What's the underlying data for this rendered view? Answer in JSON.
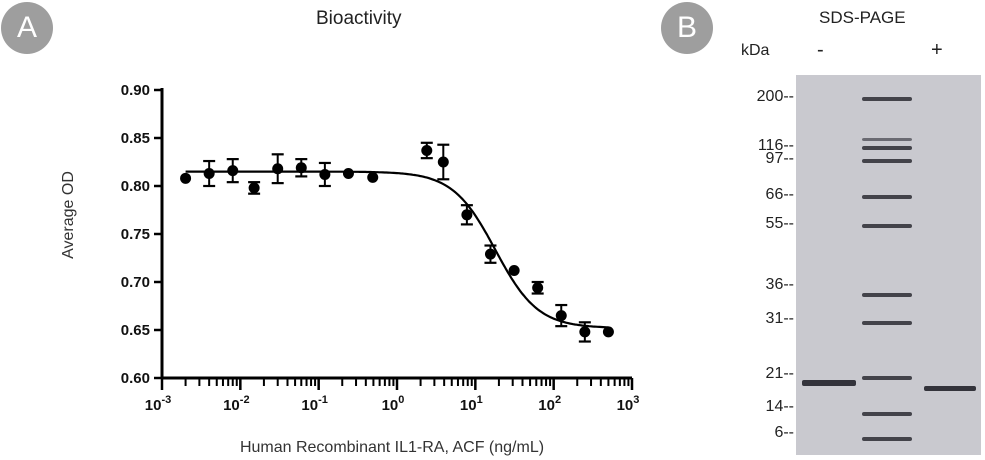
{
  "panel_a": {
    "badge": "A",
    "chart_data": {
      "type": "scatter",
      "title": "Bioactivity",
      "xlabel": "Human Recombinant IL1-RA, ACF (ng/mL)",
      "ylabel": "Average OD",
      "xscale": "log",
      "xlim": [
        0.001,
        1000
      ],
      "ylim": [
        0.6,
        0.9
      ],
      "x_ticks": [
        "-3",
        "-2",
        "-1",
        "0",
        "1",
        "2",
        "3"
      ],
      "y_ticks": [
        "0.60",
        "0.65",
        "0.70",
        "0.75",
        "0.80",
        "0.85",
        "0.90"
      ],
      "grid": false,
      "legend": "none",
      "series": [
        {
          "x": [
            0.002,
            0.004,
            0.008,
            0.015,
            0.03,
            0.06,
            0.12,
            0.24,
            0.49,
            2.4,
            3.9,
            7.8,
            15.6,
            31.3,
            62.5,
            125,
            250,
            500
          ],
          "y": [
            0.808,
            0.813,
            0.816,
            0.798,
            0.818,
            0.819,
            0.812,
            0.813,
            0.809,
            0.837,
            0.825,
            0.77,
            0.729,
            0.712,
            0.694,
            0.665,
            0.648,
            0.648
          ],
          "error": [
            0.0,
            0.013,
            0.012,
            0.006,
            0.015,
            0.009,
            0.012,
            0.0,
            0.0,
            0.008,
            0.018,
            0.01,
            0.009,
            0.0,
            0.006,
            0.011,
            0.01,
            0.0
          ]
        }
      ],
      "fit_curve": {
        "model": "4PL",
        "top": 0.815,
        "bottom": 0.652,
        "ec50": 18,
        "hill": 1.6
      }
    }
  },
  "panel_b": {
    "badge": "B",
    "title": "SDS-PAGE",
    "unit_label": "kDa",
    "lane_labels": [
      "-",
      "+"
    ],
    "markers": [
      "200--",
      "116--",
      "97--",
      "66--",
      "55--",
      "36--",
      "31--",
      "21--",
      "14--",
      "6--"
    ],
    "marker_kda": [
      200,
      116,
      97,
      66,
      55,
      36,
      31,
      21,
      14,
      6
    ]
  },
  "colors": {
    "badge": "#9e9e9e",
    "gel_background": "#c9c9cf",
    "band": "#2b2b33",
    "data": "#000000"
  }
}
